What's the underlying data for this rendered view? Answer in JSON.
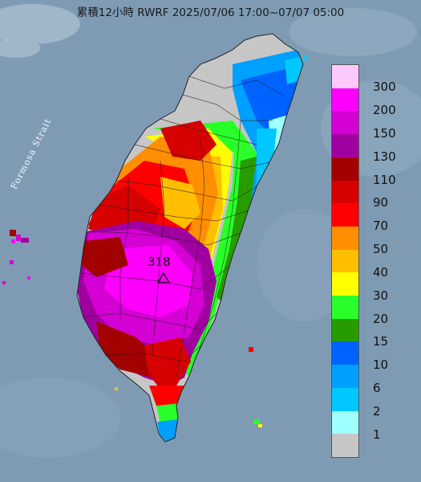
{
  "title": "累積12小時 RWRF 2025/07/06 17:00~07/07 05:00",
  "strait_label": "Formosa Strait",
  "max_value_label": "318",
  "legend": {
    "labels": [
      "300",
      "200",
      "150",
      "130",
      "110",
      "90",
      "70",
      "50",
      "40",
      "30",
      "20",
      "15",
      "10",
      "6",
      "2",
      "1"
    ],
    "colors": [
      "#fdc9fd",
      "#fc00fc",
      "#d400d4",
      "#a000a0",
      "#a30000",
      "#d60000",
      "#ff0000",
      "#ff8f00",
      "#ffbf00",
      "#ffff00",
      "#29ff29",
      "#279c00",
      "#0062ff",
      "#00a0ff",
      "#00c8ff",
      "#a0ffff",
      "#c6c6c6"
    ]
  },
  "colors": {
    "sea": "#7f9bb4",
    "land_gray": "#c6c6c6"
  }
}
